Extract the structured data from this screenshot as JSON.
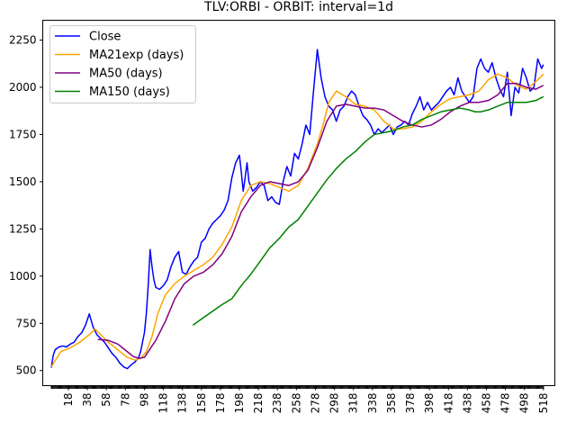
{
  "chart_data": {
    "type": "line",
    "title": "TLV:ORBI - ORBIT: interval=1d",
    "xlabel": "",
    "ylabel": "",
    "xlim": [
      -9,
      530
    ],
    "ylim": [
      420,
      2355
    ],
    "grid": false,
    "legend_position": "top-left",
    "x_ticks": [
      18,
      38,
      58,
      78,
      98,
      118,
      138,
      158,
      178,
      198,
      218,
      238,
      258,
      278,
      298,
      318,
      338,
      358,
      378,
      398,
      418,
      438,
      458,
      478,
      498,
      518
    ],
    "x_tick_labels": [
      "18",
      "38",
      "58",
      "78",
      "98",
      "118",
      "138",
      "158",
      "178",
      "198",
      "218",
      "238",
      "258",
      "278",
      "298",
      "318",
      "338",
      "358",
      "378",
      "398",
      "418",
      "438",
      "458",
      "478",
      "498",
      "518"
    ],
    "y_ticks": [
      500,
      750,
      1000,
      1250,
      1500,
      1750,
      2000,
      2250
    ],
    "y_tick_labels": [
      "500",
      "750",
      "1000",
      "1250",
      "1500",
      "1750",
      "2000",
      "2250"
    ],
    "series": [
      {
        "name": "Close",
        "color": "#0000ff",
        "x": [
          0,
          2,
          4,
          8,
          12,
          16,
          20,
          24,
          28,
          32,
          36,
          40,
          44,
          48,
          52,
          56,
          60,
          64,
          68,
          72,
          76,
          80,
          84,
          88,
          92,
          94,
          96,
          98,
          100,
          102,
          104,
          106,
          108,
          110,
          114,
          118,
          122,
          126,
          130,
          134,
          138,
          142,
          146,
          150,
          154,
          158,
          162,
          166,
          170,
          174,
          178,
          182,
          186,
          190,
          194,
          198,
          200,
          202,
          204,
          206,
          208,
          212,
          216,
          220,
          224,
          228,
          232,
          236,
          240,
          244,
          248,
          252,
          256,
          260,
          264,
          268,
          272,
          276,
          280,
          284,
          288,
          292,
          296,
          300,
          304,
          308,
          312,
          316,
          320,
          324,
          328,
          332,
          336,
          340,
          344,
          348,
          352,
          356,
          360,
          364,
          368,
          372,
          376,
          380,
          384,
          388,
          392,
          396,
          400,
          404,
          408,
          412,
          416,
          420,
          424,
          428,
          432,
          436,
          440,
          444,
          448,
          452,
          456,
          460,
          464,
          468,
          472,
          476,
          480,
          484,
          488,
          492,
          496,
          500,
          504,
          508,
          512,
          516,
          518
        ],
        "y": [
          515,
          580,
          610,
          625,
          630,
          625,
          640,
          650,
          680,
          700,
          740,
          800,
          730,
          690,
          670,
          650,
          620,
          590,
          570,
          540,
          520,
          510,
          530,
          545,
          570,
          600,
          650,
          700,
          800,
          950,
          1140,
          1050,
          980,
          940,
          930,
          950,
          980,
          1050,
          1100,
          1130,
          1020,
          1010,
          1050,
          1080,
          1100,
          1180,
          1200,
          1250,
          1280,
          1300,
          1320,
          1350,
          1400,
          1520,
          1600,
          1640,
          1550,
          1450,
          1520,
          1600,
          1500,
          1450,
          1470,
          1500,
          1480,
          1400,
          1420,
          1390,
          1380,
          1500,
          1580,
          1530,
          1650,
          1620,
          1700,
          1800,
          1750,
          1980,
          2200,
          2050,
          1950,
          1900,
          1880,
          1820,
          1880,
          1900,
          1950,
          1980,
          1960,
          1900,
          1850,
          1830,
          1800,
          1750,
          1780,
          1760,
          1780,
          1800,
          1750,
          1790,
          1800,
          1820,
          1800,
          1860,
          1900,
          1950,
          1880,
          1920,
          1880,
          1900,
          1920,
          1950,
          1980,
          2000,
          1960,
          2050,
          1980,
          1950,
          1920,
          1950,
          2100,
          2150,
          2100,
          2080,
          2130,
          2050,
          1990,
          1950,
          2080,
          1850,
          2000,
          1970,
          2100,
          2050,
          1980,
          2000,
          2150,
          2100,
          2120
        ]
      },
      {
        "name": "MA21exp (days)",
        "color": "#ffa500",
        "x": [
          0,
          10,
          20,
          30,
          40,
          46,
          52,
          60,
          70,
          80,
          88,
          94,
          100,
          106,
          112,
          120,
          130,
          140,
          150,
          160,
          170,
          180,
          190,
          200,
          210,
          220,
          230,
          240,
          250,
          260,
          270,
          280,
          286,
          292,
          300,
          310,
          320,
          330,
          340,
          350,
          360,
          370,
          380,
          390,
          400,
          410,
          420,
          430,
          440,
          450,
          460,
          470,
          480,
          490,
          500,
          510,
          518
        ],
        "y": [
          520,
          600,
          620,
          650,
          690,
          720,
          690,
          650,
          610,
          570,
          555,
          565,
          600,
          680,
          800,
          900,
          960,
          1000,
          1030,
          1060,
          1100,
          1170,
          1260,
          1400,
          1480,
          1500,
          1490,
          1470,
          1450,
          1480,
          1570,
          1700,
          1800,
          1920,
          1980,
          1950,
          1910,
          1900,
          1880,
          1820,
          1780,
          1780,
          1790,
          1820,
          1870,
          1910,
          1940,
          1950,
          1960,
          1980,
          2040,
          2070,
          2050,
          2010,
          1990,
          2030,
          2070
        ]
      },
      {
        "name": "MA50 (days)",
        "color": "#800080",
        "x": [
          49,
          60,
          70,
          80,
          86,
          92,
          98,
          110,
          120,
          130,
          140,
          150,
          160,
          170,
          180,
          190,
          200,
          210,
          220,
          230,
          240,
          250,
          260,
          270,
          280,
          290,
          300,
          310,
          320,
          330,
          340,
          350,
          360,
          370,
          380,
          390,
          400,
          410,
          420,
          430,
          440,
          450,
          460,
          470,
          480,
          490,
          500,
          510,
          518
        ],
        "y": [
          665,
          660,
          640,
          600,
          575,
          565,
          570,
          660,
          760,
          880,
          960,
          1000,
          1020,
          1060,
          1120,
          1210,
          1340,
          1420,
          1480,
          1500,
          1490,
          1480,
          1500,
          1560,
          1680,
          1820,
          1900,
          1910,
          1900,
          1890,
          1890,
          1880,
          1850,
          1820,
          1800,
          1790,
          1800,
          1830,
          1870,
          1900,
          1920,
          1920,
          1930,
          1960,
          2020,
          2020,
          2000,
          1990,
          2010
        ]
      },
      {
        "name": "MA150 (days)",
        "color": "#008000",
        "x": [
          149,
          160,
          170,
          180,
          190,
          200,
          210,
          220,
          230,
          240,
          250,
          260,
          270,
          280,
          290,
          300,
          310,
          320,
          330,
          340,
          350,
          360,
          370,
          380,
          390,
          400,
          410,
          420,
          430,
          440,
          446,
          452,
          460,
          470,
          480,
          490,
          500,
          510,
          518
        ],
        "y": [
          740,
          780,
          815,
          850,
          880,
          950,
          1010,
          1080,
          1150,
          1200,
          1260,
          1300,
          1370,
          1440,
          1510,
          1570,
          1620,
          1660,
          1710,
          1750,
          1760,
          1770,
          1790,
          1800,
          1830,
          1850,
          1870,
          1880,
          1890,
          1880,
          1870,
          1870,
          1880,
          1900,
          1920,
          1920,
          1920,
          1930,
          1950
        ]
      }
    ]
  }
}
